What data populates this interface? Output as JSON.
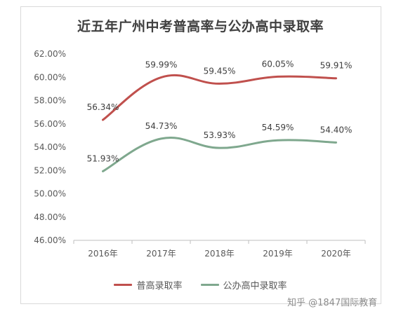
{
  "title": "近五年广州中考普高率与公办高中录取率",
  "watermark": "知乎 @1847国际教育",
  "colors": {
    "series1": "#c0504d",
    "series2": "#7fa88e",
    "axis": "#bfbfbf"
  },
  "chart_data": {
    "type": "line",
    "title": "近五年广州中考普高率与公办高中录取率",
    "categories": [
      "2016年",
      "2017年",
      "2018年",
      "2019年",
      "2020年"
    ],
    "series": [
      {
        "name": "普高录取率",
        "values": [
          56.34,
          59.99,
          59.45,
          60.05,
          59.91
        ],
        "labels": [
          "56.34%",
          "59.99%",
          "59.45%",
          "60.05%",
          "59.91%"
        ]
      },
      {
        "name": "公办高中录取率",
        "values": [
          51.93,
          54.73,
          53.93,
          54.59,
          54.4
        ],
        "labels": [
          "51.93%",
          "54.73%",
          "53.93%",
          "54.59%",
          "54.40%"
        ]
      }
    ],
    "ylim": [
      46,
      62
    ],
    "yticks": [
      "46.00%",
      "48.00%",
      "50.00%",
      "52.00%",
      "54.00%",
      "56.00%",
      "58.00%",
      "60.00%",
      "62.00%"
    ],
    "grid": false,
    "legend": "bottom"
  }
}
